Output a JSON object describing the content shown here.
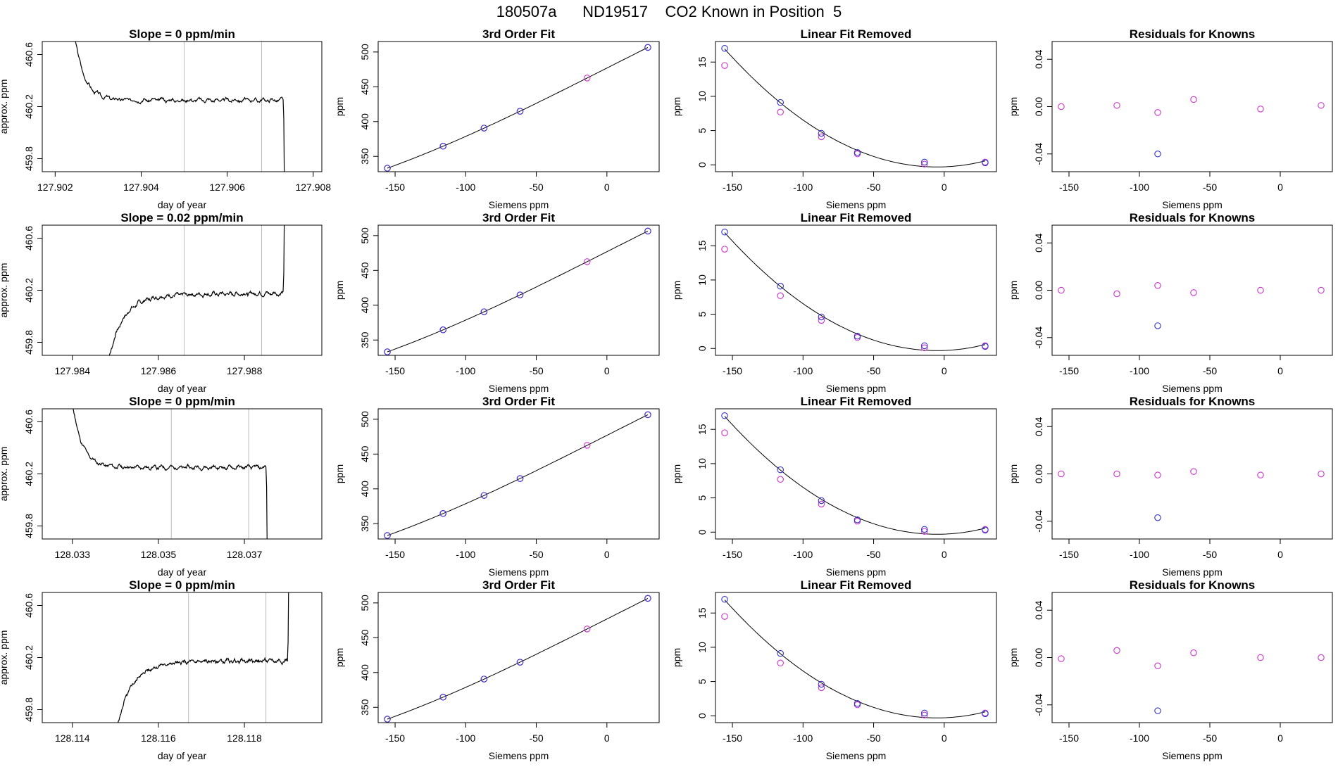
{
  "title": "180507a      ND19517    CO2 Known in Position  5",
  "colors": {
    "series_line": "#000000",
    "known_a": "#cc33cc",
    "known_b": "#3333cc",
    "guide": "#bbbbbb"
  },
  "chart_data": [
    {
      "type": "line",
      "row": 0,
      "col": 0,
      "title": "Slope =  0  ppm/min",
      "xlabel": "day of year",
      "ylabel": "approx. ppm",
      "xlim": [
        127.9017,
        127.9082
      ],
      "ylim": [
        459.7,
        460.7
      ],
      "xticks": [
        127.902,
        127.904,
        127.906,
        127.908
      ],
      "xticklabels": [
        "127.902",
        "127.904",
        "127.906",
        "127.908"
      ],
      "yticks": [
        459.8,
        460.2,
        460.6
      ],
      "yticklabels": [
        "459.8",
        "460.2",
        "460.6"
      ],
      "vlines": [
        127.905,
        127.9068
      ],
      "trace": {
        "t0": 127.9028,
        "rise_width": 0.0005,
        "t_end": 127.9073,
        "level": 460.2,
        "amp": 0.6,
        "shape": "decay",
        "noise_seed": 3
      }
    },
    {
      "type": "scatter",
      "row": 0,
      "col": 1,
      "title": "3rd Order Fit",
      "xlabel": "Siemens ppm",
      "ylabel": "ppm",
      "xlim": [
        -162,
        37
      ],
      "ylim": [
        328,
        515
      ],
      "xticks": [
        -150,
        -100,
        -50,
        0
      ],
      "xticklabels": [
        "-150",
        "-100",
        "-50",
        "0"
      ],
      "yticks": [
        350,
        400,
        450,
        500
      ],
      "yticklabels": [
        "350",
        "400",
        "450",
        "500"
      ],
      "x": [
        -155.5,
        -116,
        -87,
        -61.5,
        -14,
        29
      ],
      "y_pink": [
        333,
        364.6,
        390.6,
        414.8,
        462.6,
        506.5
      ],
      "y_blue": [
        333,
        364.6,
        390.6,
        414.8,
        null,
        506.5
      ],
      "fit": "cubic"
    },
    {
      "type": "scatter",
      "row": 0,
      "col": 2,
      "title": "Linear Fit Removed",
      "xlabel": "Siemens ppm",
      "ylabel": "ppm",
      "xlim": [
        -162,
        37
      ],
      "ylim": [
        -1,
        18
      ],
      "xticks": [
        -150,
        -100,
        -50,
        0
      ],
      "xticklabels": [
        "-150",
        "-100",
        "-50",
        "0"
      ],
      "yticks": [
        0,
        5,
        10,
        15
      ],
      "yticklabels": [
        "0",
        "5",
        "10",
        "15"
      ],
      "x": [
        -155.5,
        -116,
        -87,
        -61.5,
        -14,
        29
      ],
      "y_pink": [
        14.5,
        7.7,
        4.1,
        1.6,
        0.1,
        0.4
      ],
      "y_blue": [
        17.0,
        9.1,
        4.6,
        1.8,
        0.4,
        0.3
      ],
      "fit": "quadratic"
    },
    {
      "type": "scatter",
      "row": 0,
      "col": 3,
      "title": "Residuals for Knowns",
      "xlabel": "Siemens ppm",
      "ylabel": "ppm",
      "xlim": [
        -162,
        37
      ],
      "ylim": [
        -0.055,
        0.055
      ],
      "xticks": [
        -150,
        -100,
        -50,
        0
      ],
      "xticklabels": [
        "-150",
        "-100",
        "-50",
        "0"
      ],
      "yticks": [
        -0.04,
        0.0,
        0.04
      ],
      "yticklabels": [
        "-0.04",
        "0.00",
        "0.04"
      ],
      "x": [
        -155.5,
        -116,
        -87,
        -61.5,
        -14,
        29
      ],
      "y_pink": [
        0.0,
        0.001,
        -0.005,
        0.006,
        -0.002,
        0.001
      ],
      "y_blue": [
        null,
        null,
        -0.04,
        null,
        null,
        null
      ]
    },
    {
      "type": "line",
      "row": 1,
      "col": 0,
      "title": "Slope =  0.02  ppm/min",
      "xlabel": "day of year",
      "ylabel": "approx. ppm",
      "xlim": [
        127.9833,
        127.9898
      ],
      "ylim": [
        459.7,
        460.7
      ],
      "xticks": [
        127.984,
        127.986,
        127.988
      ],
      "xticklabels": [
        "127.984",
        "127.986",
        "127.988"
      ],
      "yticks": [
        459.8,
        460.2,
        460.6
      ],
      "yticklabels": [
        "459.8",
        "460.2",
        "460.6"
      ],
      "vlines": [
        127.9866,
        127.9884
      ],
      "trace": {
        "t0": 127.9848,
        "rise_width": 0.0006,
        "t_end": 127.9889,
        "level": 460.2,
        "amp": 0.6,
        "shape": "rise",
        "noise_seed": 7
      }
    },
    {
      "type": "scatter",
      "row": 1,
      "col": 1,
      "title": "3rd Order Fit",
      "xlabel": "Siemens ppm",
      "ylabel": "ppm",
      "xlim": [
        -162,
        37
      ],
      "ylim": [
        328,
        515
      ],
      "xticks": [
        -150,
        -100,
        -50,
        0
      ],
      "xticklabels": [
        "-150",
        "-100",
        "-50",
        "0"
      ],
      "yticks": [
        350,
        400,
        450,
        500
      ],
      "yticklabels": [
        "350",
        "400",
        "450",
        "500"
      ],
      "x": [
        -155.5,
        -116,
        -87,
        -61.5,
        -14,
        29
      ],
      "y_pink": [
        333,
        364.6,
        390.6,
        414.8,
        462.6,
        506.5
      ],
      "y_blue": [
        333,
        364.6,
        390.6,
        414.8,
        null,
        506.5
      ],
      "fit": "cubic"
    },
    {
      "type": "scatter",
      "row": 1,
      "col": 2,
      "title": "Linear Fit Removed",
      "xlabel": "Siemens ppm",
      "ylabel": "ppm",
      "xlim": [
        -162,
        37
      ],
      "ylim": [
        -1,
        18
      ],
      "xticks": [
        -150,
        -100,
        -50,
        0
      ],
      "xticklabels": [
        "-150",
        "-100",
        "-50",
        "0"
      ],
      "yticks": [
        0,
        5,
        10,
        15
      ],
      "yticklabels": [
        "0",
        "5",
        "10",
        "15"
      ],
      "x": [
        -155.5,
        -116,
        -87,
        -61.5,
        -14,
        29
      ],
      "y_pink": [
        14.5,
        7.7,
        4.1,
        1.6,
        0.1,
        0.4
      ],
      "y_blue": [
        17.0,
        9.1,
        4.6,
        1.8,
        0.4,
        0.3
      ],
      "fit": "quadratic"
    },
    {
      "type": "scatter",
      "row": 1,
      "col": 3,
      "title": "Residuals for Knowns",
      "xlabel": "Siemens ppm",
      "ylabel": "ppm",
      "xlim": [
        -162,
        37
      ],
      "ylim": [
        -0.055,
        0.055
      ],
      "xticks": [
        -150,
        -100,
        -50,
        0
      ],
      "xticklabels": [
        "-150",
        "-100",
        "-50",
        "0"
      ],
      "yticks": [
        -0.04,
        0.0,
        0.04
      ],
      "yticklabels": [
        "-0.04",
        "0.00",
        "0.04"
      ],
      "x": [
        -155.5,
        -116,
        -87,
        -61.5,
        -14,
        29
      ],
      "y_pink": [
        0.0,
        -0.003,
        0.004,
        -0.002,
        0.0,
        0.0
      ],
      "y_blue": [
        null,
        null,
        -0.03,
        null,
        null,
        null
      ]
    },
    {
      "type": "line",
      "row": 2,
      "col": 0,
      "title": "Slope =  0  ppm/min",
      "xlabel": "day of year",
      "ylabel": "approx. ppm",
      "xlim": [
        128.0323,
        128.0388
      ],
      "ylim": [
        459.7,
        460.7
      ],
      "xticks": [
        128.033,
        128.035,
        128.037
      ],
      "xticklabels": [
        "128.033",
        "128.035",
        "128.037"
      ],
      "yticks": [
        459.8,
        460.2,
        460.6
      ],
      "yticklabels": [
        "459.8",
        "460.2",
        "460.6"
      ],
      "vlines": [
        128.0353,
        128.0371
      ],
      "trace": {
        "t0": 128.0333,
        "rise_width": 0.0005,
        "t_end": 128.0375,
        "level": 460.2,
        "amp": 0.6,
        "shape": "decay",
        "noise_seed": 11
      }
    },
    {
      "type": "scatter",
      "row": 2,
      "col": 1,
      "title": "3rd Order Fit",
      "xlabel": "Siemens ppm",
      "ylabel": "ppm",
      "xlim": [
        -162,
        37
      ],
      "ylim": [
        328,
        515
      ],
      "xticks": [
        -150,
        -100,
        -50,
        0
      ],
      "xticklabels": [
        "-150",
        "-100",
        "-50",
        "0"
      ],
      "yticks": [
        350,
        400,
        450,
        500
      ],
      "yticklabels": [
        "350",
        "400",
        "450",
        "500"
      ],
      "x": [
        -155.5,
        -116,
        -87,
        -61.5,
        -14,
        29
      ],
      "y_pink": [
        333,
        364.6,
        390.6,
        414.8,
        462.6,
        506.5
      ],
      "y_blue": [
        333,
        364.6,
        390.6,
        414.8,
        null,
        506.5
      ],
      "fit": "cubic"
    },
    {
      "type": "scatter",
      "row": 2,
      "col": 2,
      "title": "Linear Fit Removed",
      "xlabel": "Siemens ppm",
      "ylabel": "ppm",
      "xlim": [
        -162,
        37
      ],
      "ylim": [
        -1,
        18
      ],
      "xticks": [
        -150,
        -100,
        -50,
        0
      ],
      "xticklabels": [
        "-150",
        "-100",
        "-50",
        "0"
      ],
      "yticks": [
        0,
        5,
        10,
        15
      ],
      "yticklabels": [
        "0",
        "5",
        "10",
        "15"
      ],
      "x": [
        -155.5,
        -116,
        -87,
        -61.5,
        -14,
        29
      ],
      "y_pink": [
        14.5,
        7.7,
        4.1,
        1.6,
        0.1,
        0.4
      ],
      "y_blue": [
        17.0,
        9.1,
        4.6,
        1.8,
        0.4,
        0.3
      ],
      "fit": "quadratic"
    },
    {
      "type": "scatter",
      "row": 2,
      "col": 3,
      "title": "Residuals for Knowns",
      "xlabel": "Siemens ppm",
      "ylabel": "ppm",
      "xlim": [
        -162,
        37
      ],
      "ylim": [
        -0.055,
        0.055
      ],
      "xticks": [
        -150,
        -100,
        -50,
        0
      ],
      "xticklabels": [
        "-150",
        "-100",
        "-50",
        "0"
      ],
      "yticks": [
        -0.04,
        0.0,
        0.04
      ],
      "yticklabels": [
        "-0.04",
        "0.00",
        "0.04"
      ],
      "x": [
        -155.5,
        -116,
        -87,
        -61.5,
        -14,
        29
      ],
      "y_pink": [
        0.0,
        0.0,
        -0.001,
        0.002,
        -0.001,
        0.0
      ],
      "y_blue": [
        null,
        null,
        -0.037,
        null,
        null,
        null
      ]
    },
    {
      "type": "line",
      "row": 3,
      "col": 0,
      "title": "Slope =  0  ppm/min",
      "xlabel": "day of year",
      "ylabel": "approx. ppm",
      "xlim": [
        128.1133,
        128.1198
      ],
      "ylim": [
        459.7,
        460.7
      ],
      "xticks": [
        128.114,
        128.116,
        128.118
      ],
      "xticklabels": [
        "128.114",
        "128.116",
        "128.118"
      ],
      "yticks": [
        459.8,
        460.2,
        460.6
      ],
      "yticklabels": [
        "459.8",
        "460.2",
        "460.6"
      ],
      "vlines": [
        128.1167,
        128.1185
      ],
      "trace": {
        "t0": 128.115,
        "rise_width": 0.0006,
        "t_end": 128.119,
        "level": 460.2,
        "amp": 0.6,
        "shape": "rise",
        "noise_seed": 5
      }
    },
    {
      "type": "scatter",
      "row": 3,
      "col": 1,
      "title": "3rd Order Fit",
      "xlabel": "Siemens ppm",
      "ylabel": "ppm",
      "xlim": [
        -162,
        37
      ],
      "ylim": [
        328,
        515
      ],
      "xticks": [
        -150,
        -100,
        -50,
        0
      ],
      "xticklabels": [
        "-150",
        "-100",
        "-50",
        "0"
      ],
      "yticks": [
        350,
        400,
        450,
        500
      ],
      "yticklabels": [
        "350",
        "400",
        "450",
        "500"
      ],
      "x": [
        -155.5,
        -116,
        -87,
        -61.5,
        -14,
        29
      ],
      "y_pink": [
        333,
        364.6,
        390.6,
        414.8,
        462.6,
        506.5
      ],
      "y_blue": [
        333,
        364.6,
        390.6,
        414.8,
        null,
        506.5
      ],
      "fit": "cubic"
    },
    {
      "type": "scatter",
      "row": 3,
      "col": 2,
      "title": "Linear Fit Removed",
      "xlabel": "Siemens ppm",
      "ylabel": "ppm",
      "xlim": [
        -162,
        37
      ],
      "ylim": [
        -1,
        18
      ],
      "xticks": [
        -150,
        -100,
        -50,
        0
      ],
      "xticklabels": [
        "-150",
        "-100",
        "-50",
        "0"
      ],
      "yticks": [
        0,
        5,
        10,
        15
      ],
      "yticklabels": [
        "0",
        "5",
        "10",
        "15"
      ],
      "x": [
        -155.5,
        -116,
        -87,
        -61.5,
        -14,
        29
      ],
      "y_pink": [
        14.5,
        7.7,
        4.1,
        1.6,
        0.1,
        0.4
      ],
      "y_blue": [
        17.0,
        9.1,
        4.6,
        1.8,
        0.4,
        0.3
      ],
      "fit": "quadratic"
    },
    {
      "type": "scatter",
      "row": 3,
      "col": 3,
      "title": "Residuals for Knowns",
      "xlabel": "Siemens ppm",
      "ylabel": "ppm",
      "xlim": [
        -162,
        37
      ],
      "ylim": [
        -0.055,
        0.055
      ],
      "xticks": [
        -150,
        -100,
        -50,
        0
      ],
      "xticklabels": [
        "-150",
        "-100",
        "-50",
        "0"
      ],
      "yticks": [
        -0.04,
        0.0,
        0.04
      ],
      "yticklabels": [
        "-0.04",
        "0.00",
        "0.04"
      ],
      "x": [
        -155.5,
        -116,
        -87,
        -61.5,
        -14,
        29
      ],
      "y_pink": [
        -0.001,
        0.006,
        -0.007,
        0.004,
        0.0,
        0.0
      ],
      "y_blue": [
        null,
        null,
        -0.045,
        null,
        null,
        null
      ]
    }
  ]
}
